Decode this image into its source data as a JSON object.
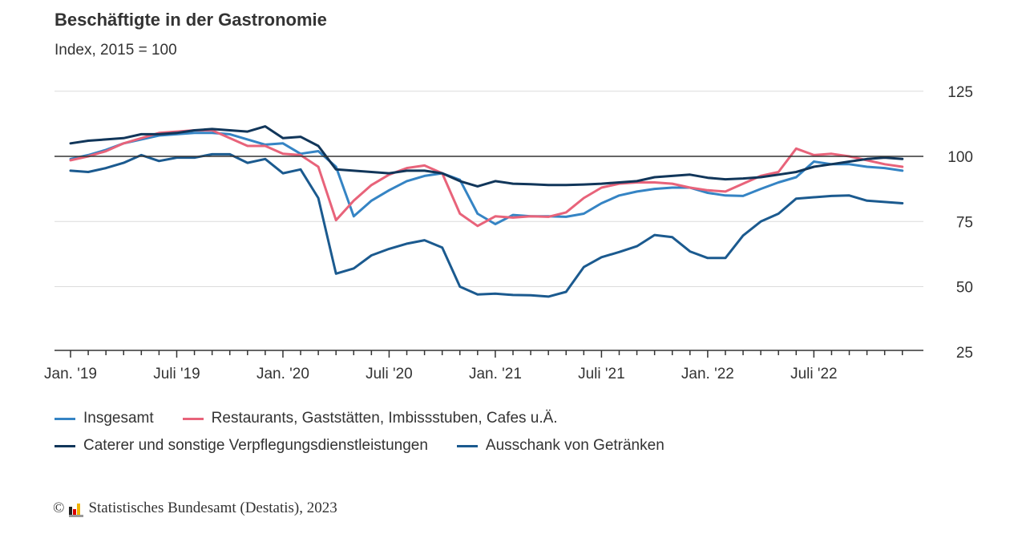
{
  "chart_data": {
    "type": "line",
    "title": "Beschäftigte in der Gastronomie",
    "subtitle": "Index, 2015 = 100",
    "xlabel": "",
    "ylabel": "",
    "ylim": [
      25,
      125
    ],
    "yticks": [
      "125",
      "100",
      "75",
      "50",
      "25"
    ],
    "ytick_values": [
      125,
      100,
      75,
      50,
      25
    ],
    "reference_line": 100,
    "x_tick_labels": [
      "Jan. '19",
      "Juli '19",
      "Jan. '20",
      "Juli '20",
      "Jan. '21",
      "Juli '21",
      "Jan. '22",
      "Juli '22"
    ],
    "x_tick_label_months": [
      0,
      6,
      12,
      18,
      24,
      30,
      36,
      42
    ],
    "x_start": "2019-01",
    "n_months": 48,
    "grid": true,
    "legend_position": "bottom",
    "series": [
      {
        "name": "Insgesamt",
        "color": "#3584c4",
        "values": [
          99,
          100.5,
          102.5,
          105,
          106.5,
          108,
          108.5,
          109,
          109,
          108.5,
          106.5,
          104.5,
          105,
          101,
          102,
          96,
          77,
          83,
          87,
          90.5,
          92.5,
          93.5,
          91,
          78,
          74,
          77.5,
          77,
          77,
          76.8,
          78,
          82,
          85,
          86.5,
          87.5,
          88,
          88,
          86,
          85,
          84.8,
          87.5,
          90,
          92,
          98,
          97,
          97,
          96,
          95.5,
          94.5
        ]
      },
      {
        "name": "Restaurants, Gaststätten, Imbissstuben, Cafes u.Ä.",
        "color": "#e8637a",
        "values": [
          98.5,
          100,
          102,
          105,
          107,
          109,
          109.5,
          110,
          110,
          107,
          104,
          104,
          101,
          100.5,
          96,
          75.5,
          83,
          89,
          93,
          95.5,
          96.5,
          93.5,
          78,
          73.3,
          77,
          76.5,
          77,
          76.8,
          78.5,
          84,
          88,
          89.5,
          90,
          90,
          89.5,
          88,
          87,
          86.5,
          89.5,
          92.5,
          94,
          103,
          100.5,
          101,
          100,
          98.5,
          97,
          96
        ]
      },
      {
        "name": "Caterer und sonstige Verpflegungsdienstleistungen",
        "color": "#11365a",
        "values": [
          105,
          106,
          106.5,
          107,
          108.5,
          108.5,
          109,
          110,
          110.5,
          110,
          109.5,
          111.5,
          107,
          107.5,
          104,
          95,
          94.5,
          94,
          93.5,
          94.5,
          94.5,
          93.5,
          90.5,
          88.5,
          90.5,
          89.5,
          89.3,
          89,
          89,
          89.2,
          89.5,
          90,
          90.5,
          92,
          92.5,
          93,
          91.8,
          91.2,
          91.5,
          92,
          93,
          94,
          96,
          97,
          98,
          99,
          99.5,
          99
        ]
      },
      {
        "name": "Ausschank von Getränken",
        "color": "#1b5a8f",
        "values": [
          94.5,
          94,
          95.5,
          97.5,
          100.5,
          98.2,
          99.5,
          99.5,
          100.8,
          100.8,
          97.5,
          99,
          93.5,
          95,
          84,
          55,
          57,
          62,
          64.5,
          66.5,
          67.8,
          65,
          50,
          47,
          47.3,
          46.8,
          46.7,
          46.2,
          48,
          57.5,
          61.3,
          63.3,
          65.5,
          69.8,
          69,
          63.5,
          61,
          61,
          69.6,
          75,
          78,
          83.8,
          84.3,
          84.8,
          85,
          83,
          82.5,
          82
        ]
      }
    ]
  },
  "footer": {
    "copyright": "©",
    "source": "Statistisches Bundesamt (Destatis), 2023"
  }
}
